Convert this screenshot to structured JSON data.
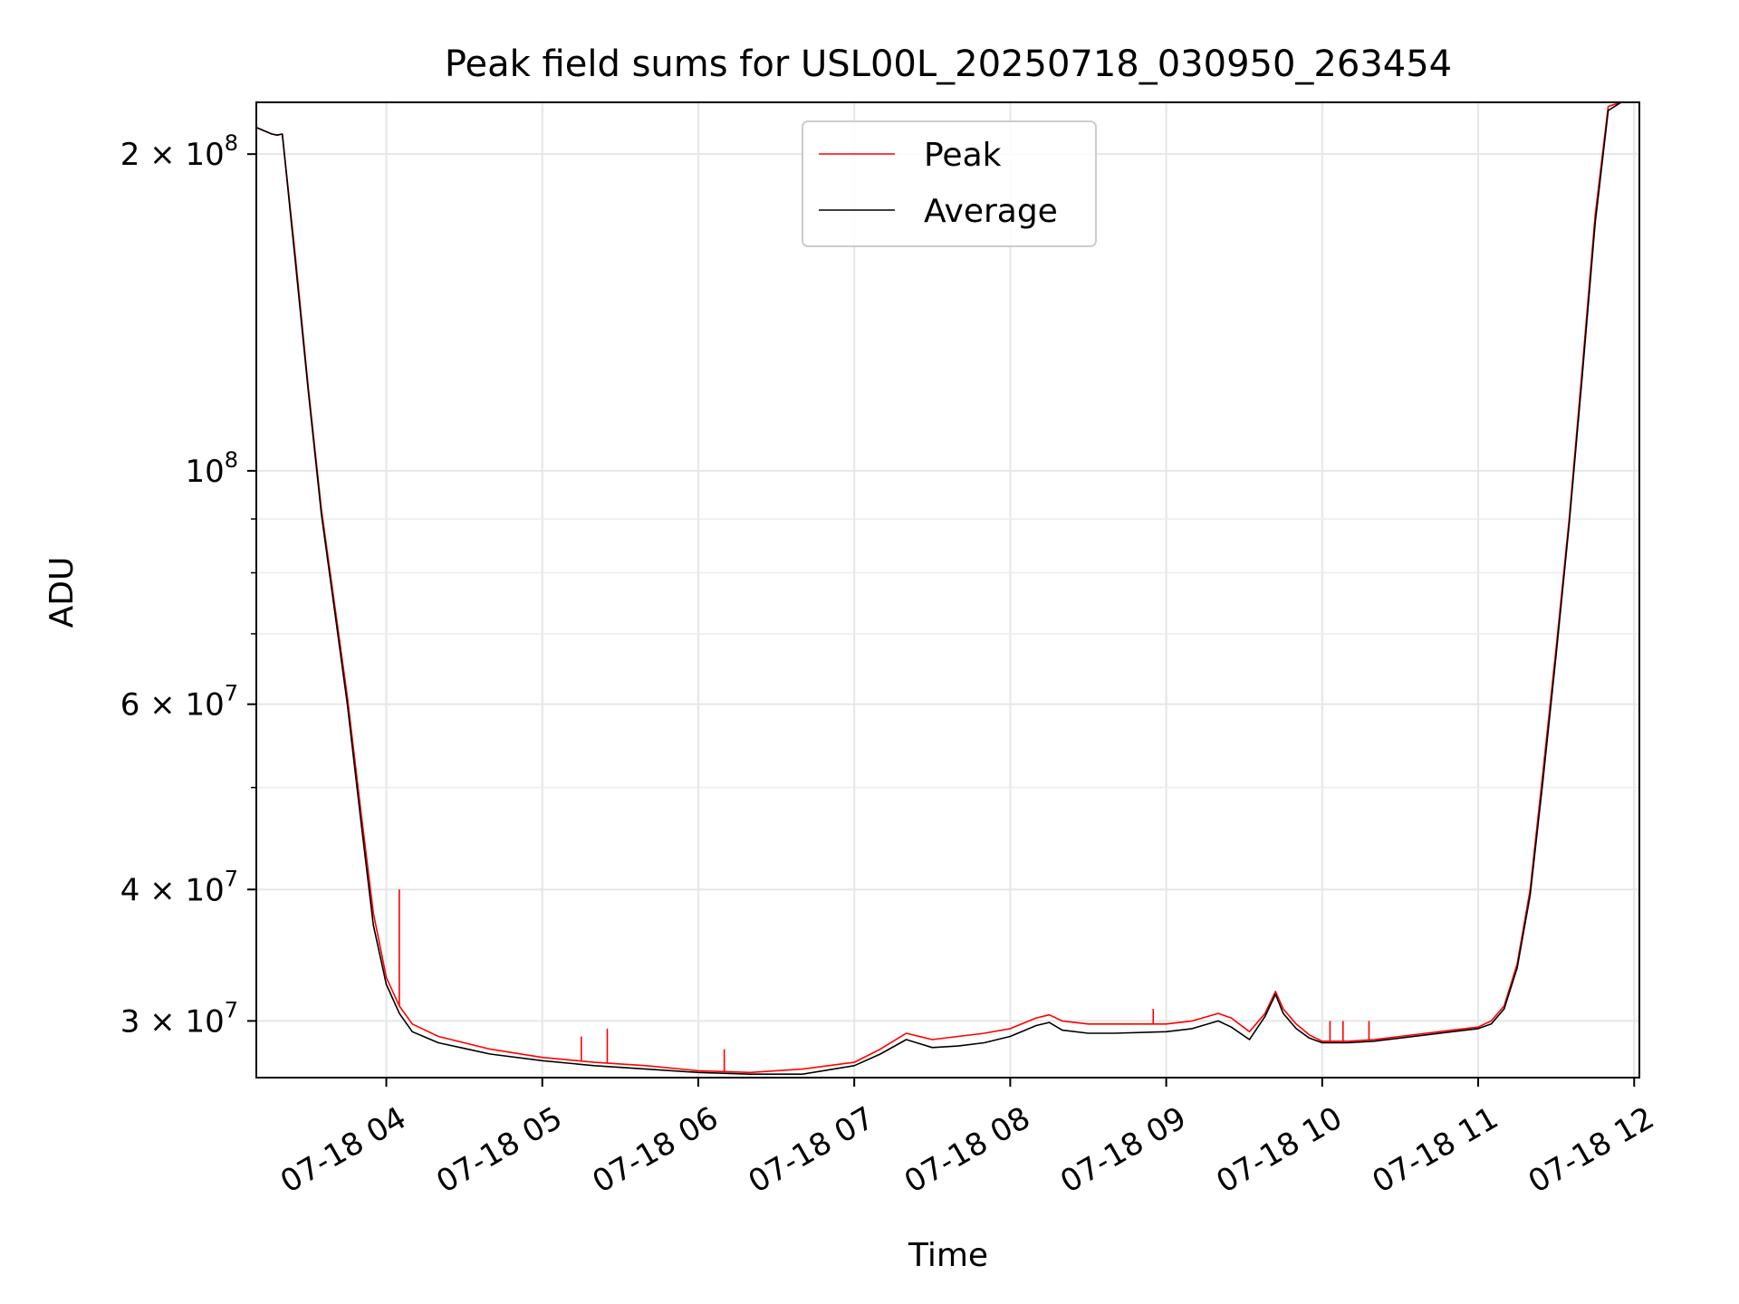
{
  "chart_data": {
    "type": "line",
    "title": "Peak field sums for USL00L_20250718_030950_263454",
    "xlabel": "Time",
    "ylabel": "ADU",
    "y_scale": "log",
    "x_range": [
      "07-18 03:10",
      "07-18 12:02"
    ],
    "ylim": [
      26500000,
      224000000
    ],
    "x_ticks": [
      {
        "t": "07-18 04:00",
        "label": "07-18 04"
      },
      {
        "t": "07-18 05:00",
        "label": "07-18 05"
      },
      {
        "t": "07-18 06:00",
        "label": "07-18 06"
      },
      {
        "t": "07-18 07:00",
        "label": "07-18 07"
      },
      {
        "t": "07-18 08:00",
        "label": "07-18 08"
      },
      {
        "t": "07-18 09:00",
        "label": "07-18 09"
      },
      {
        "t": "07-18 10:00",
        "label": "07-18 10"
      },
      {
        "t": "07-18 11:00",
        "label": "07-18 11"
      },
      {
        "t": "07-18 12:00",
        "label": "07-18 12"
      }
    ],
    "y_ticks": [
      {
        "value": 200000000,
        "base": "2",
        "times": "×",
        "ten": "10",
        "exp": "8"
      },
      {
        "value": 100000000,
        "base": "",
        "times": "",
        "ten": "10",
        "exp": "8"
      },
      {
        "value": 60000000,
        "base": "6",
        "times": "×",
        "ten": "10",
        "exp": "7"
      },
      {
        "value": 40000000,
        "base": "4",
        "times": "×",
        "ten": "10",
        "exp": "7"
      },
      {
        "value": 30000000,
        "base": "3",
        "times": "×",
        "ten": "10",
        "exp": "7"
      }
    ],
    "y_minor_ticks": [
      50000000,
      70000000,
      80000000,
      90000000
    ],
    "grid": true,
    "legend_position": "top-center",
    "series": [
      {
        "name": "Peak",
        "color": "#ff0000",
        "x": [
          "07-18 03:10",
          "07-18 03:14",
          "07-18 03:16",
          "07-18 03:18",
          "07-18 03:20",
          "07-18 03:25",
          "07-18 03:30",
          "07-18 03:35",
          "07-18 03:40",
          "07-18 03:45",
          "07-18 03:50",
          "07-18 03:55",
          "07-18 04:00",
          "07-18 04:05",
          "07-18 04:10",
          "07-18 04:20",
          "07-18 04:40",
          "07-18 05:00",
          "07-18 05:20",
          "07-18 05:40",
          "07-18 06:00",
          "07-18 06:20",
          "07-18 06:40",
          "07-18 07:00",
          "07-18 07:10",
          "07-18 07:20",
          "07-18 07:30",
          "07-18 07:40",
          "07-18 07:50",
          "07-18 08:00",
          "07-18 08:10",
          "07-18 08:15",
          "07-18 08:20",
          "07-18 08:30",
          "07-18 08:40",
          "07-18 09:00",
          "07-18 09:10",
          "07-18 09:20",
          "07-18 09:25",
          "07-18 09:32",
          "07-18 09:38",
          "07-18 09:42",
          "07-18 09:45",
          "07-18 09:50",
          "07-18 09:55",
          "07-18 10:00",
          "07-18 10:10",
          "07-18 10:20",
          "07-18 10:30",
          "07-18 10:40",
          "07-18 10:50",
          "07-18 11:00",
          "07-18 11:05",
          "07-18 11:10",
          "07-18 11:15",
          "07-18 11:20",
          "07-18 11:25",
          "07-18 11:30",
          "07-18 11:35",
          "07-18 11:40",
          "07-18 11:45",
          "07-18 11:50",
          "07-18 11:55",
          "07-18 12:02"
        ],
        "values": [
          212000000,
          210000000,
          209000000,
          208500000,
          209000000,
          160000000,
          120000000,
          92000000,
          75000000,
          61000000,
          48000000,
          38000000,
          33000000,
          31000000,
          29800000,
          29000000,
          28200000,
          27700000,
          27400000,
          27200000,
          26900000,
          26800000,
          27000000,
          27400000,
          28200000,
          29200000,
          28800000,
          29000000,
          29200000,
          29500000,
          30200000,
          30400000,
          30000000,
          29800000,
          29800000,
          29800000,
          30000000,
          30500000,
          30200000,
          29300000,
          30500000,
          32000000,
          30800000,
          29800000,
          29100000,
          28700000,
          28700000,
          28800000,
          29000000,
          29200000,
          29400000,
          29600000,
          30000000,
          31000000,
          34000000,
          40000000,
          52000000,
          68000000,
          90000000,
          125000000,
          175000000,
          222000000,
          224000000,
          224000000
        ],
        "spikes": [
          {
            "x": "07-18 04:05",
            "y": 40000000
          },
          {
            "x": "07-18 05:25",
            "y": 29500000
          },
          {
            "x": "07-18 05:15",
            "y": 29000000
          },
          {
            "x": "07-18 06:10",
            "y": 28200000
          },
          {
            "x": "07-18 08:55",
            "y": 30800000
          },
          {
            "x": "07-18 10:03",
            "y": 30000000
          },
          {
            "x": "07-18 10:08",
            "y": 30000000
          },
          {
            "x": "07-18 10:18",
            "y": 30000000
          }
        ]
      },
      {
        "name": "Average",
        "color": "#000000",
        "x": [
          "07-18 03:10",
          "07-18 03:14",
          "07-18 03:16",
          "07-18 03:18",
          "07-18 03:20",
          "07-18 03:25",
          "07-18 03:30",
          "07-18 03:35",
          "07-18 03:40",
          "07-18 03:45",
          "07-18 03:50",
          "07-18 03:55",
          "07-18 04:00",
          "07-18 04:05",
          "07-18 04:10",
          "07-18 04:20",
          "07-18 04:40",
          "07-18 05:00",
          "07-18 05:20",
          "07-18 05:40",
          "07-18 06:00",
          "07-18 06:20",
          "07-18 06:40",
          "07-18 07:00",
          "07-18 07:10",
          "07-18 07:20",
          "07-18 07:30",
          "07-18 07:40",
          "07-18 07:50",
          "07-18 08:00",
          "07-18 08:10",
          "07-18 08:15",
          "07-18 08:20",
          "07-18 08:30",
          "07-18 08:40",
          "07-18 09:00",
          "07-18 09:10",
          "07-18 09:20",
          "07-18 09:25",
          "07-18 09:32",
          "07-18 09:38",
          "07-18 09:42",
          "07-18 09:45",
          "07-18 09:50",
          "07-18 09:55",
          "07-18 10:00",
          "07-18 10:10",
          "07-18 10:20",
          "07-18 10:30",
          "07-18 10:40",
          "07-18 10:50",
          "07-18 11:00",
          "07-18 11:05",
          "07-18 11:10",
          "07-18 11:15",
          "07-18 11:20",
          "07-18 11:25",
          "07-18 11:30",
          "07-18 11:35",
          "07-18 11:40",
          "07-18 11:45",
          "07-18 11:50",
          "07-18 11:55",
          "07-18 12:02"
        ],
        "values": [
          212000000,
          210000000,
          209000000,
          208500000,
          209000000,
          158000000,
          119000000,
          91000000,
          74000000,
          60000000,
          47000000,
          37000000,
          32500000,
          30500000,
          29300000,
          28600000,
          27900000,
          27500000,
          27200000,
          27000000,
          26800000,
          26700000,
          26700000,
          27200000,
          27900000,
          28800000,
          28300000,
          28400000,
          28600000,
          29000000,
          29700000,
          29900000,
          29400000,
          29200000,
          29200000,
          29300000,
          29500000,
          30000000,
          29600000,
          28800000,
          30300000,
          31800000,
          30500000,
          29500000,
          28900000,
          28600000,
          28600000,
          28700000,
          28900000,
          29100000,
          29300000,
          29500000,
          29800000,
          30800000,
          33700000,
          39500000,
          51000000,
          67000000,
          89000000,
          123000000,
          172000000,
          220000000,
          224000000,
          224000000
        ]
      }
    ]
  }
}
